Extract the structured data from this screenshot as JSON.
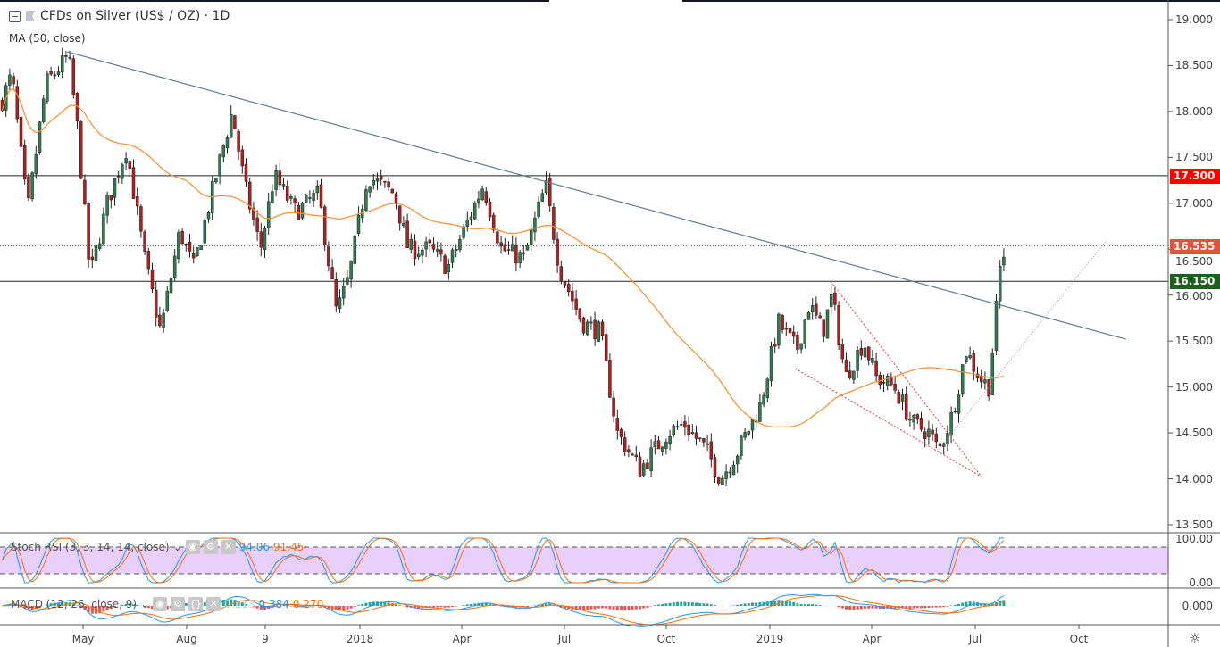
{
  "header": {
    "title": "CFDs on Silver (US$ / OZ) · 1D",
    "ma_label": "MA (50, close)"
  },
  "stoch": {
    "label": "Stoch RSI (3, 3, 14, 14, close)",
    "k": "94.06",
    "d": "91.45",
    "k_color": "#2196f3",
    "d_color": "#ff6d00",
    "axis": [
      "100.00",
      "0.00"
    ]
  },
  "macd": {
    "label": "MACD (12, 26, close, 9)",
    "hist": "0.113",
    "macd": "0.384",
    "signal": "0.270",
    "axis": "0.000"
  },
  "price_axis": [
    "19.000",
    "18.500",
    "18.000",
    "17.500",
    "17.000",
    "16.500",
    "16.000",
    "15.500",
    "15.000",
    "14.500",
    "14.000",
    "13.500"
  ],
  "price_tags": [
    {
      "value": "17.300",
      "color": "#ff0000"
    },
    {
      "value": "16.535",
      "color": "#e0533e"
    },
    {
      "value": "16.150",
      "color": "#1e5e1e"
    }
  ],
  "time_axis": [
    "May",
    "Aug",
    "9",
    "2018",
    "Apr",
    "Jul",
    "Oct",
    "2019",
    "Apr",
    "Jul",
    "Oct"
  ],
  "colors": {
    "up": "#2e7d4f",
    "down": "#b71c1c",
    "ma": "#ff8c2a",
    "trendline": "#607d8b",
    "stoch_band": "#e9cffc"
  },
  "chart_data": {
    "type": "candlestick",
    "symbol": "CFDs on Silver (US$ / OZ)",
    "interval": "1D",
    "ylim": [
      13.5,
      19.0
    ],
    "horizontal_levels": [
      17.3,
      16.15
    ],
    "last_price": 16.535,
    "approx_close_path": [
      [
        "2017-02-17",
        18.1
      ],
      [
        "2017-02-26",
        18.4
      ],
      [
        "2017-03-12",
        16.9
      ],
      [
        "2017-03-28",
        18.3
      ],
      [
        "2017-04-17",
        18.6
      ],
      [
        "2017-04-25",
        17.8
      ],
      [
        "2017-05-06",
        16.2
      ],
      [
        "2017-05-21",
        17.0
      ],
      [
        "2017-06-07",
        17.6
      ],
      [
        "2017-06-23",
        16.4
      ],
      [
        "2017-07-07",
        15.6
      ],
      [
        "2017-07-24",
        16.7
      ],
      [
        "2017-08-05",
        16.3
      ],
      [
        "2017-08-25",
        17.3
      ],
      [
        "2017-09-08",
        18.0
      ],
      [
        "2017-09-19",
        17.2
      ],
      [
        "2017-10-03",
        16.5
      ],
      [
        "2017-10-15",
        17.3
      ],
      [
        "2017-11-03",
        16.9
      ],
      [
        "2017-11-23",
        17.1
      ],
      [
        "2017-12-09",
        15.8
      ],
      [
        "2017-12-20",
        16.2
      ],
      [
        "2018-01-05",
        17.3
      ],
      [
        "2018-01-29",
        17.1
      ],
      [
        "2018-02-10",
        16.5
      ],
      [
        "2018-03-01",
        16.5
      ],
      [
        "2018-03-17",
        16.3
      ],
      [
        "2018-04-17",
        17.2
      ],
      [
        "2018-05-03",
        16.5
      ],
      [
        "2018-05-23",
        16.4
      ],
      [
        "2018-06-11",
        17.2
      ],
      [
        "2018-06-23",
        16.3
      ],
      [
        "2018-07-13",
        15.7
      ],
      [
        "2018-07-29",
        15.6
      ],
      [
        "2018-08-13",
        14.5
      ],
      [
        "2018-09-02",
        14.1
      ],
      [
        "2018-09-26",
        14.5
      ],
      [
        "2018-10-11",
        14.6
      ],
      [
        "2018-10-31",
        14.3
      ],
      [
        "2018-11-12",
        14.0
      ],
      [
        "2018-11-27",
        14.3
      ],
      [
        "2018-12-17",
        14.8
      ],
      [
        "2019-01-02",
        15.7
      ],
      [
        "2019-01-18",
        15.4
      ],
      [
        "2019-01-29",
        15.9
      ],
      [
        "2019-02-10",
        15.6
      ],
      [
        "2019-02-18",
        16.0
      ],
      [
        "2019-03-02",
        15.1
      ],
      [
        "2019-03-18",
        15.5
      ],
      [
        "2019-03-29",
        15.1
      ],
      [
        "2019-04-14",
        15.0
      ],
      [
        "2019-04-30",
        14.6
      ],
      [
        "2019-05-15",
        14.5
      ],
      [
        "2019-05-23",
        14.3
      ],
      [
        "2019-06-04",
        14.7
      ],
      [
        "2019-06-16",
        15.4
      ],
      [
        "2019-06-28",
        15.1
      ],
      [
        "2019-07-06",
        15.0
      ],
      [
        "2019-07-11",
        15.6
      ],
      [
        "2019-07-16",
        16.3
      ],
      [
        "2019-07-21",
        16.535
      ]
    ],
    "trendline": [
      [
        "2017-04-17",
        18.65
      ],
      [
        "2019-11-05",
        15.52
      ]
    ],
    "channel_lines": [
      [
        [
          "2019-02-18",
          16.15
        ],
        [
          "2019-07-01",
          14.02
        ]
      ],
      [
        [
          "2019-01-18",
          15.2
        ],
        [
          "2019-07-01",
          14.02
        ]
      ]
    ],
    "dotted_support": [
      [
        "2019-05-23",
        14.3
      ],
      [
        "2019-10-19",
        16.6
      ]
    ]
  }
}
